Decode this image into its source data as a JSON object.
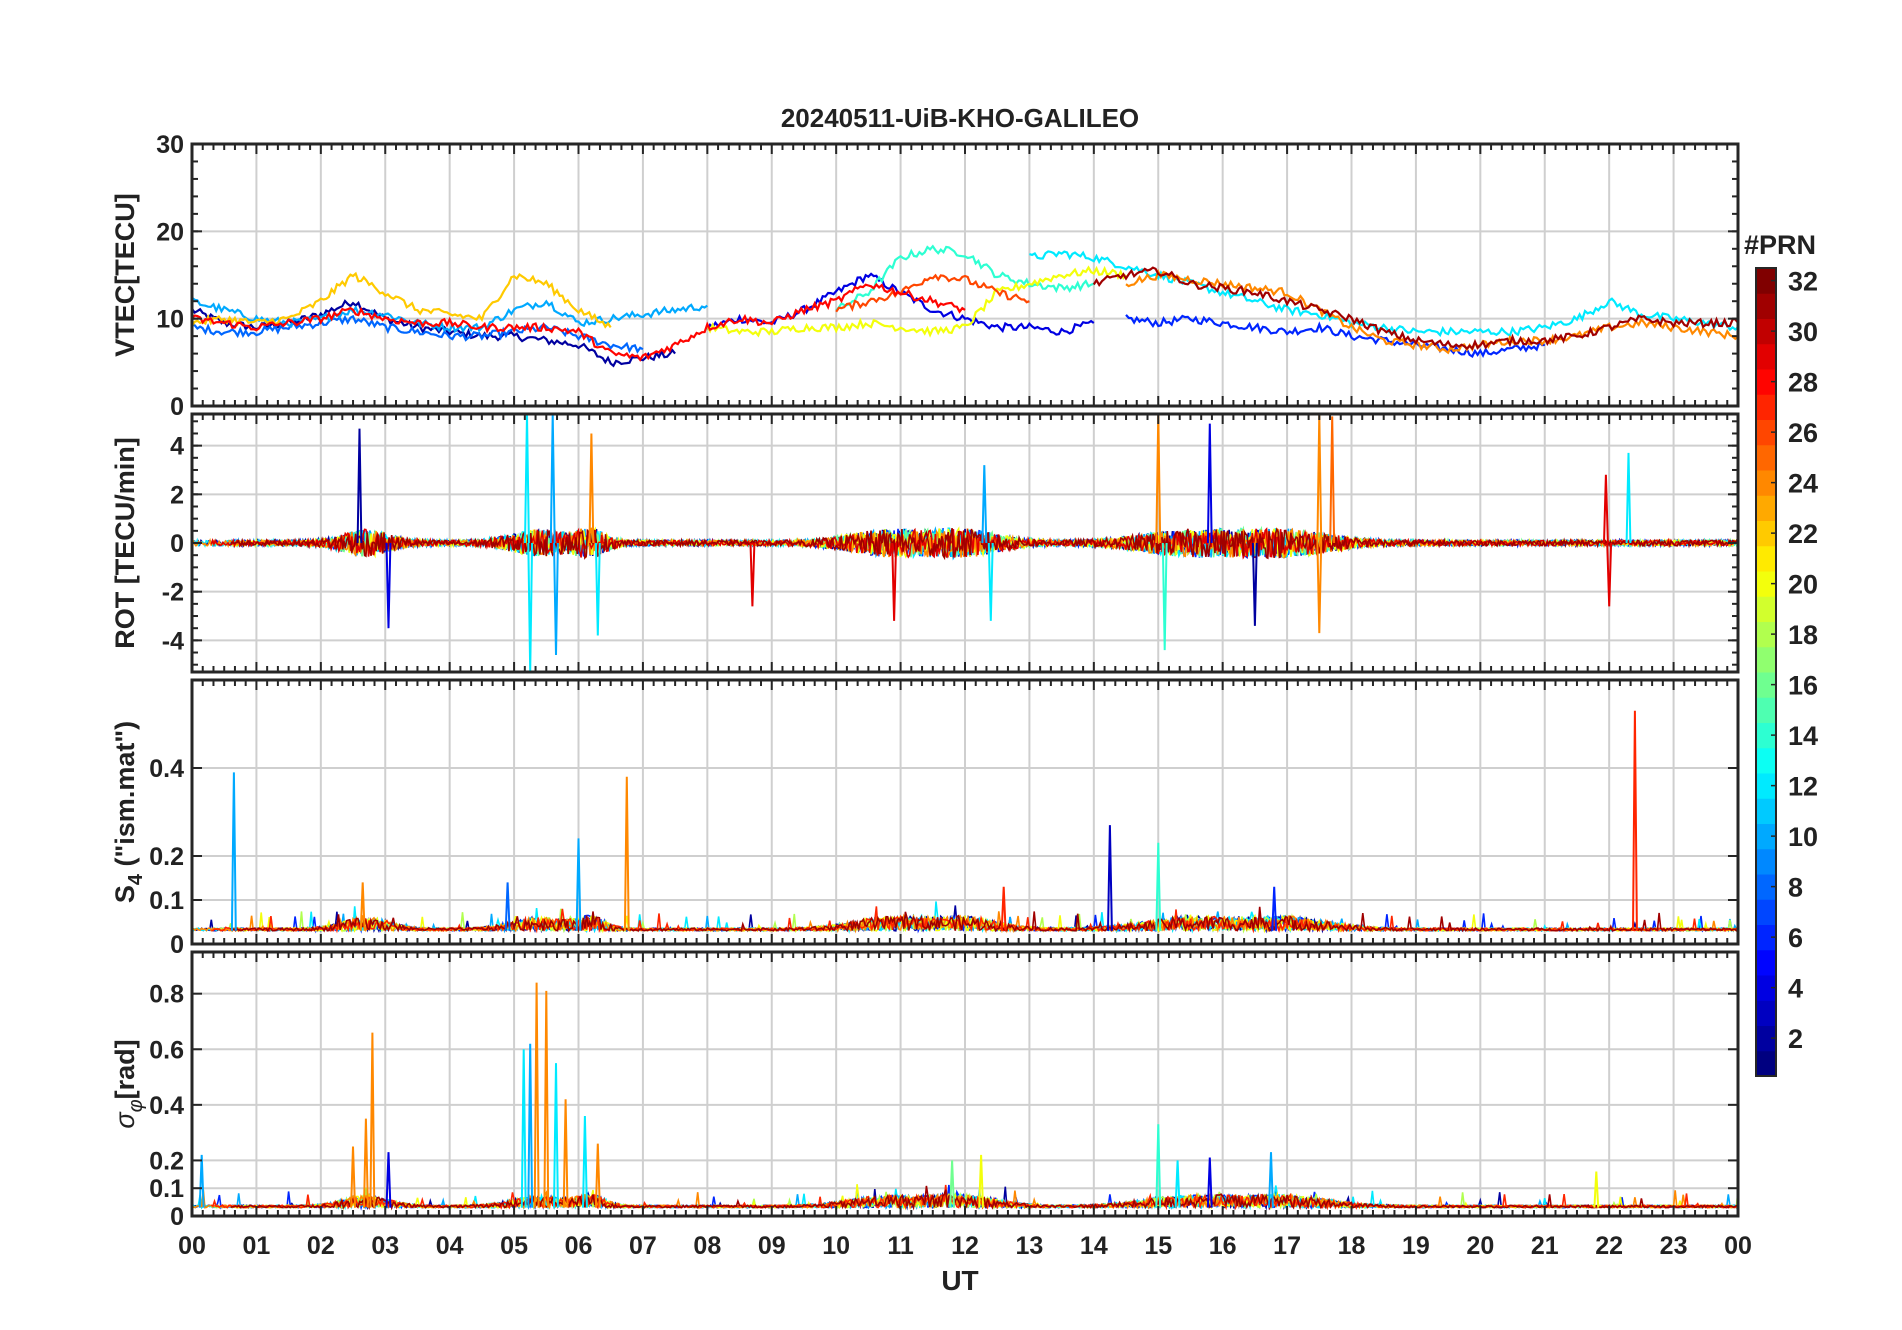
{
  "chart_data": {
    "title": "20240511-UiB-KHO-GALILEO",
    "xlabel": "UT",
    "x_ticks": [
      "00",
      "01",
      "02",
      "03",
      "04",
      "05",
      "06",
      "07",
      "08",
      "09",
      "10",
      "11",
      "12",
      "13",
      "14",
      "15",
      "16",
      "17",
      "18",
      "19",
      "20",
      "21",
      "22",
      "23",
      "00"
    ],
    "xlim": [
      0,
      24
    ],
    "grid": true,
    "colorbar": {
      "title": "#PRN",
      "ticks": [
        "2",
        "4",
        "6",
        "8",
        "10",
        "12",
        "14",
        "16",
        "18",
        "20",
        "22",
        "24",
        "26",
        "28",
        "30",
        "32"
      ],
      "colormap": "jet",
      "range": [
        1,
        32
      ],
      "placement": "right"
    },
    "panels": [
      {
        "name": "vtec",
        "type": "line",
        "ylabel": "VTEC[TECU]",
        "ylim": [
          0,
          30
        ],
        "y_ticks": [
          "0",
          "10",
          "20",
          "30"
        ],
        "y_tick_values": [
          0,
          10,
          20,
          30
        ],
        "series": [
          {
            "prn": 2,
            "x": [
              0,
              0.5,
              1,
              1.5,
              2,
              2.5,
              3,
              3.5,
              4,
              4.5,
              5,
              5.5,
              6,
              6.5,
              7,
              7.5
            ],
            "y": [
              11,
              9.5,
              9,
              9.5,
              10.5,
              12,
              10,
              9,
              8.5,
              8,
              8,
              7.5,
              7,
              5,
              5.5,
              6
            ]
          },
          {
            "prn": 4,
            "x": [
              8,
              8.5,
              9,
              9.5,
              10,
              10.5,
              11,
              11.5,
              12,
              12.5,
              13,
              13.5,
              14
            ],
            "y": [
              9,
              10,
              9.5,
              11,
              13,
              15,
              13,
              11,
              10,
              9,
              9,
              8.5,
              9.5
            ]
          },
          {
            "prn": 6,
            "x": [
              14.5,
              15,
              15.5,
              16,
              16.5,
              17,
              17.5,
              18,
              18.5,
              19,
              19.5,
              20,
              20.5,
              21
            ],
            "y": [
              10,
              9.5,
              10,
              9.5,
              9,
              8.5,
              9,
              8,
              7.5,
              7,
              6.5,
              6,
              6.5,
              7
            ]
          },
          {
            "prn": 8,
            "x": [
              0,
              0.5,
              1,
              1.5,
              2,
              2.5,
              3,
              3.5,
              4,
              4.5,
              5,
              5.5,
              6,
              6.5,
              7
            ],
            "y": [
              9,
              8.5,
              8.5,
              9,
              9.5,
              10,
              9,
              8.5,
              8,
              8,
              8.5,
              9,
              8,
              7,
              6.5
            ]
          },
          {
            "prn": 10,
            "x": [
              0,
              0.5,
              1,
              1.5,
              2,
              2.5,
              3,
              3.5,
              4,
              4.5,
              5,
              5.5,
              6,
              6.5,
              7,
              7.5,
              8
            ],
            "y": [
              12,
              11,
              10,
              9.5,
              10,
              11,
              10.5,
              9.5,
              9,
              9,
              11,
              12,
              9.5,
              10,
              10.5,
              11,
              11.5
            ]
          },
          {
            "prn": 12,
            "x": [
              13,
              13.5,
              14,
              14.5,
              15,
              15.5,
              16,
              16.5,
              17,
              17.5,
              18,
              18.5,
              19,
              19.5,
              20,
              20.5,
              21,
              21.5,
              22,
              22.5,
              23,
              23.5,
              24
            ],
            "y": [
              17,
              17.5,
              17,
              16,
              15,
              14,
              13,
              12,
              11,
              10.5,
              9.5,
              9,
              8.5,
              8.5,
              8.5,
              8.5,
              9,
              10,
              12,
              10.5,
              10,
              9.5,
              9
            ]
          },
          {
            "prn": 14,
            "x": [
              10,
              10.5,
              11,
              11.5,
              12,
              12.5,
              13,
              13.5,
              14
            ],
            "y": [
              11,
              13,
              17,
              18,
              17.5,
              15,
              14,
              13.5,
              14
            ]
          },
          {
            "prn": 20,
            "x": [
              8,
              8.5,
              9,
              9.5,
              10,
              10.5,
              11,
              11.5,
              12,
              12.5,
              13,
              13.5,
              14,
              14.5
            ],
            "y": [
              9,
              8.5,
              8.5,
              9,
              9,
              9.5,
              9,
              8.5,
              9,
              13,
              14,
              15,
              15.5,
              15
            ]
          },
          {
            "prn": 22,
            "x": [
              0,
              0.5,
              1,
              1.5,
              2,
              2.5,
              3,
              3.5,
              4,
              4.5,
              5,
              5.5,
              6,
              6.5
            ],
            "y": [
              9.5,
              10,
              9.5,
              10,
              12,
              15,
              13,
              11,
              10.5,
              10,
              15,
              14,
              11,
              9
            ]
          },
          {
            "prn": 24,
            "x": [
              14.5,
              15,
              15.5,
              16,
              16.5,
              17,
              17.5,
              18,
              18.5,
              19,
              19.5,
              20,
              20.5,
              21,
              21.5,
              22,
              22.5,
              23,
              23.5,
              24
            ],
            "y": [
              14,
              15,
              14.5,
              14,
              13.5,
              13,
              11,
              9,
              7.5,
              7,
              6.5,
              7,
              7.5,
              7.5,
              8,
              9,
              9.5,
              9,
              8.5,
              8
            ]
          },
          {
            "prn": 26,
            "x": [
              10,
              10.5,
              11,
              11.5,
              12,
              12.5,
              13
            ],
            "y": [
              11,
              12,
              13,
              15,
              14.5,
              13,
              12
            ]
          },
          {
            "prn": 28,
            "x": [
              0,
              0.5,
              1,
              1.5,
              2,
              2.5,
              3,
              3.5,
              4,
              4.5,
              5,
              5.5,
              6,
              6.5,
              7,
              7.5,
              8,
              8.5,
              9,
              9.5,
              10,
              10.5,
              11,
              11.5,
              12
            ],
            "y": [
              10,
              9.5,
              9,
              9.5,
              10,
              11,
              10,
              9.5,
              9.5,
              9,
              9,
              9,
              8.5,
              6,
              5.5,
              7,
              9,
              10,
              9.5,
              11,
              12,
              14,
              13,
              12,
              11
            ]
          },
          {
            "prn": 31,
            "x": [
              14,
              14.5,
              15,
              15.5,
              16,
              16.5,
              17,
              17.5,
              18,
              18.5,
              19,
              19.5,
              20,
              20.5,
              21,
              21.5,
              22,
              22.5,
              23,
              23.5,
              24
            ],
            "y": [
              14,
              15,
              15.5,
              14,
              13.5,
              13,
              12,
              11,
              10,
              8.5,
              7.5,
              7,
              7,
              7.5,
              7.5,
              8,
              9,
              10,
              9.5,
              9.5,
              9.5
            ]
          }
        ]
      },
      {
        "name": "rot",
        "type": "line",
        "ylabel": "ROT [TECU/min]",
        "ylim": [
          -5.3,
          5.3
        ],
        "y_ticks": [
          "-4",
          "-2",
          "0",
          "2",
          "4"
        ],
        "y_tick_values": [
          -4,
          -2,
          0,
          2,
          4
        ],
        "spikes": [
          {
            "x": 2.6,
            "y": 4.7,
            "prn": 2
          },
          {
            "x": 3.05,
            "y": -3.5,
            "prn": 4
          },
          {
            "x": 5.2,
            "y": 5.3,
            "prn": 12
          },
          {
            "x": 5.25,
            "y": -5.3,
            "prn": 12
          },
          {
            "x": 5.6,
            "y": 5.3,
            "prn": 10
          },
          {
            "x": 5.65,
            "y": -4.6,
            "prn": 10
          },
          {
            "x": 6.2,
            "y": 4.5,
            "prn": 24
          },
          {
            "x": 6.3,
            "y": -3.8,
            "prn": 12
          },
          {
            "x": 8.7,
            "y": -2.6,
            "prn": 29
          },
          {
            "x": 10.9,
            "y": -3.2,
            "prn": 29
          },
          {
            "x": 12.3,
            "y": 3.2,
            "prn": 10
          },
          {
            "x": 12.4,
            "y": -3.2,
            "prn": 12
          },
          {
            "x": 15.0,
            "y": 5.3,
            "prn": 24
          },
          {
            "x": 15.1,
            "y": -4.4,
            "prn": 14
          },
          {
            "x": 15.8,
            "y": 4.9,
            "prn": 4
          },
          {
            "x": 16.5,
            "y": -3.4,
            "prn": 2
          },
          {
            "x": 17.5,
            "y": 5.3,
            "prn": 24
          },
          {
            "x": 17.7,
            "y": 5.2,
            "prn": 25
          },
          {
            "x": 17.5,
            "y": -3.7,
            "prn": 24
          },
          {
            "x": 21.95,
            "y": 2.8,
            "prn": 29
          },
          {
            "x": 22.0,
            "y": -2.6,
            "prn": 29
          },
          {
            "x": 22.3,
            "y": 3.7,
            "prn": 12
          }
        ]
      },
      {
        "name": "s4",
        "type": "line",
        "ylabel": "S4 (\"ism.mat\")",
        "ylabel_main": "S",
        "ylabel_sub": "4",
        "ylabel_rest": " (\"ism.mat\")",
        "ylim": [
          0,
          0.6
        ],
        "y_ticks": [
          "0",
          "0.1",
          "0.2",
          "0.4"
        ],
        "y_tick_values": [
          0,
          0.1,
          0.2,
          0.4
        ],
        "spikes": [
          {
            "x": 0.65,
            "y": 0.39,
            "prn": 10
          },
          {
            "x": 6.0,
            "y": 0.24,
            "prn": 10
          },
          {
            "x": 6.75,
            "y": 0.38,
            "prn": 24
          },
          {
            "x": 14.25,
            "y": 0.27,
            "prn": 3
          },
          {
            "x": 15.0,
            "y": 0.23,
            "prn": 14
          },
          {
            "x": 22.4,
            "y": 0.53,
            "prn": 27
          },
          {
            "x": 4.9,
            "y": 0.14,
            "prn": 8
          },
          {
            "x": 2.65,
            "y": 0.14,
            "prn": 24
          },
          {
            "x": 12.6,
            "y": 0.13,
            "prn": 27
          },
          {
            "x": 16.8,
            "y": 0.13,
            "prn": 6
          }
        ]
      },
      {
        "name": "sigma_phi",
        "type": "line",
        "ylabel": "σφ[rad]",
        "ylabel_main": "σ",
        "ylabel_sub": "φ",
        "ylabel_rest": "[rad]",
        "ylim": [
          0,
          0.95
        ],
        "y_ticks": [
          "0",
          "0.1",
          "0.2",
          "0.4",
          "0.6",
          "0.8"
        ],
        "y_tick_values": [
          0,
          0.1,
          0.2,
          0.4,
          0.6,
          0.8
        ],
        "spikes": [
          {
            "x": 2.8,
            "y": 0.66,
            "prn": 24
          },
          {
            "x": 2.7,
            "y": 0.35,
            "prn": 24
          },
          {
            "x": 2.5,
            "y": 0.25,
            "prn": 24
          },
          {
            "x": 3.05,
            "y": 0.23,
            "prn": 4
          },
          {
            "x": 5.15,
            "y": 0.6,
            "prn": 12
          },
          {
            "x": 5.25,
            "y": 0.62,
            "prn": 10
          },
          {
            "x": 5.35,
            "y": 0.84,
            "prn": 24
          },
          {
            "x": 5.5,
            "y": 0.81,
            "prn": 24
          },
          {
            "x": 5.65,
            "y": 0.55,
            "prn": 12
          },
          {
            "x": 5.8,
            "y": 0.42,
            "prn": 24
          },
          {
            "x": 6.1,
            "y": 0.36,
            "prn": 12
          },
          {
            "x": 6.3,
            "y": 0.26,
            "prn": 24
          },
          {
            "x": 0.15,
            "y": 0.22,
            "prn": 10
          },
          {
            "x": 15.0,
            "y": 0.33,
            "prn": 14
          },
          {
            "x": 15.3,
            "y": 0.2,
            "prn": 12
          },
          {
            "x": 15.8,
            "y": 0.21,
            "prn": 4
          },
          {
            "x": 16.75,
            "y": 0.23,
            "prn": 10
          },
          {
            "x": 11.8,
            "y": 0.2,
            "prn": 16
          },
          {
            "x": 12.25,
            "y": 0.22,
            "prn": 20
          },
          {
            "x": 21.8,
            "y": 0.16,
            "prn": 20
          }
        ]
      }
    ]
  }
}
